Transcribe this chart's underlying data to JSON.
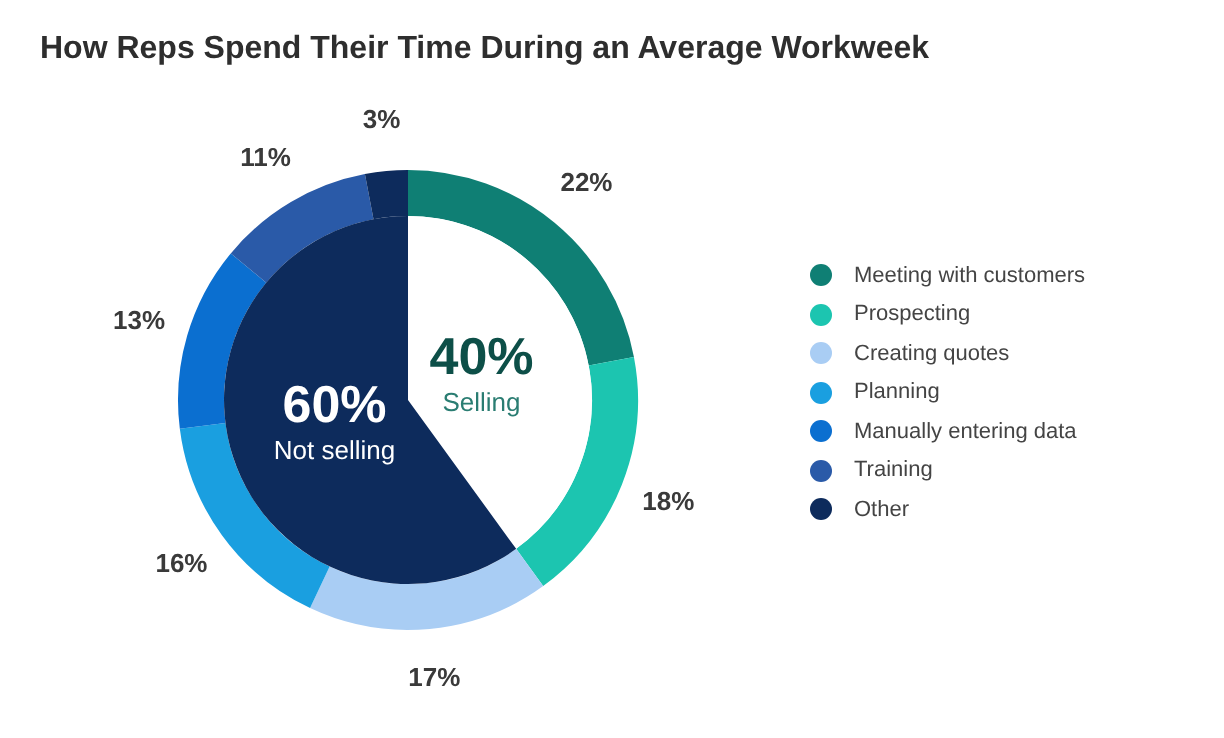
{
  "chart_data": [
    {
      "type": "donut",
      "title": "How Reps Spend Their Time During an Average Workweek",
      "categories": [
        "Meeting with customers",
        "Prospecting",
        "Creating quotes",
        "Planning",
        "Manually entering data",
        "Training",
        "Other"
      ],
      "values": [
        22,
        18,
        17,
        16,
        13,
        11,
        3
      ],
      "value_labels": [
        "22%",
        "18%",
        "17%",
        "16%",
        "13%",
        "11%",
        "3%"
      ],
      "colors": [
        "#0f7f74",
        "#1cc5b0",
        "#a9cdf4",
        "#1a9fe0",
        "#0b6fd0",
        "#2a5aa8",
        "#0d2b5c"
      ],
      "legend": "right"
    },
    {
      "type": "pie",
      "categories": [
        "Selling",
        "Not selling"
      ],
      "values": [
        40,
        60
      ],
      "value_labels": [
        "40%",
        "60%"
      ],
      "colors": [
        "#ffffff",
        "#0d2b5c"
      ]
    }
  ]
}
